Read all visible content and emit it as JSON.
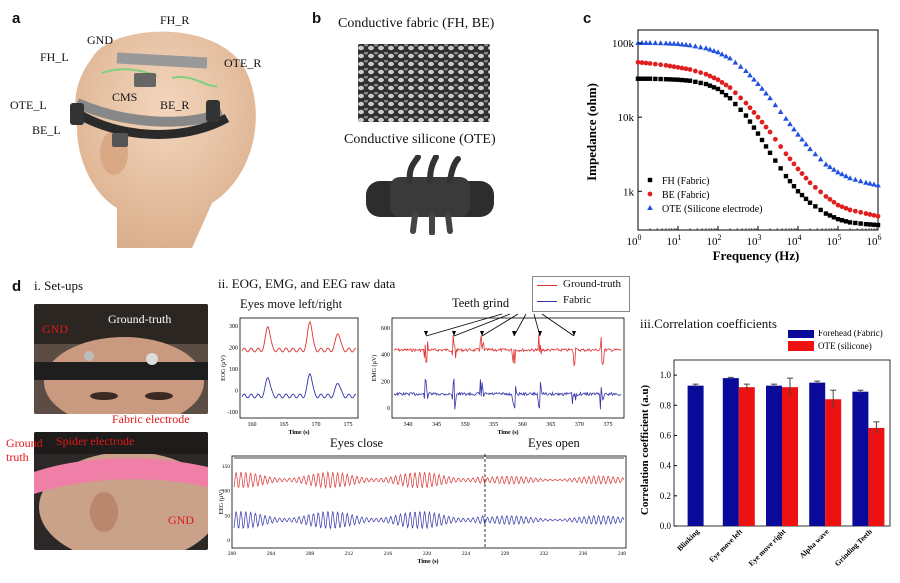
{
  "panel_a": {
    "label": "a",
    "electrodes": [
      "FH_R",
      "GND",
      "FH_L",
      "OTE_R",
      "CMS",
      "OTE_L",
      "BE_R",
      "BE_L"
    ]
  },
  "panel_b": {
    "label": "b",
    "fabric_title": "Conductive fabric (FH, BE)",
    "silicone_title": "Conductive silicone (OTE)"
  },
  "panel_c": {
    "label": "c",
    "chart_data": {
      "type": "scatter",
      "xlabel": "Frequency (Hz)",
      "ylabel": "Impedance (ohm)",
      "x_scale": "log",
      "y_scale": "log",
      "xlim": [
        1,
        1000000
      ],
      "ylim": [
        300,
        150000
      ],
      "x_ticks": [
        "10^0",
        "10^1",
        "10^2",
        "10^3",
        "10^4",
        "10^5",
        "10^6"
      ],
      "y_ticks": [
        "1k",
        "10k",
        "100k"
      ],
      "legend_position": "bottom-left",
      "series": [
        {
          "name": "FH (Fabric)",
          "marker": "square",
          "color": "#000000",
          "x": [
            1,
            2,
            5,
            10,
            20,
            50,
            100,
            200,
            500,
            1000,
            2000,
            5000,
            10000,
            20000,
            50000,
            100000,
            200000,
            500000,
            1000000
          ],
          "y": [
            33000,
            33000,
            32500,
            32000,
            31000,
            28000,
            24000,
            18000,
            10500,
            6000,
            3300,
            1600,
            1000,
            700,
            500,
            420,
            380,
            360,
            350
          ]
        },
        {
          "name": "BE (Fabric)",
          "marker": "circle",
          "color": "#e02020",
          "x": [
            1,
            2,
            5,
            10,
            20,
            50,
            100,
            200,
            500,
            1000,
            2000,
            5000,
            10000,
            20000,
            50000,
            100000,
            200000,
            500000,
            1000000
          ],
          "y": [
            55000,
            53000,
            50000,
            47000,
            44000,
            38000,
            32000,
            25000,
            15500,
            10000,
            6300,
            3200,
            2000,
            1300,
            850,
            650,
            560,
            500,
            460
          ]
        },
        {
          "name": "OTE (Silicone electrode)",
          "marker": "triangle",
          "color": "#2050e0",
          "x": [
            1,
            2,
            5,
            10,
            20,
            50,
            100,
            200,
            500,
            1000,
            2000,
            5000,
            10000,
            20000,
            50000,
            100000,
            200000,
            500000,
            1000000
          ],
          "y": [
            100000,
            100000,
            99000,
            97000,
            93000,
            85000,
            75000,
            62000,
            42000,
            28000,
            18000,
            9500,
            5800,
            3700,
            2300,
            1800,
            1500,
            1300,
            1200
          ]
        }
      ]
    }
  },
  "panel_d": {
    "label": "d",
    "setups_title": "i. Set-ups",
    "photo1_labels": {
      "gnd": "GND",
      "ground_truth": "Ground-truth",
      "fabric_electrode": "Fabric electrode"
    },
    "photo2_labels": {
      "ground_truth": "Ground\ntruth",
      "spider_electrode": "Spider electrode",
      "gnd": "GND"
    },
    "raw_title": "ii. EOG, EMG, and EEG raw data",
    "legend": {
      "ground_truth": "Ground-truth",
      "fabric": "Fabric"
    },
    "eog": {
      "title": "Eyes move left/right",
      "ylabel": "EOG (µV)",
      "xlabel": "Time (s)",
      "y_ticks": [
        "300",
        "200",
        "100",
        "0",
        "-100"
      ],
      "x_ticks": [
        "160",
        "165",
        "170",
        "175"
      ]
    },
    "emg": {
      "title": "Teeth grind",
      "ylabel": "EMG (µV)",
      "xlabel": "Time (s)",
      "y_ticks": [
        "600",
        "400",
        "200",
        "0"
      ],
      "x_ticks": [
        "340",
        "345",
        "350",
        "355",
        "360",
        "365",
        "370",
        "375"
      ]
    },
    "eeg": {
      "eyes_close": "Eyes close",
      "eyes_open": "Eyes open",
      "ylabel": "EEG (µV)",
      "xlabel": "Time (s)",
      "y_ticks": [
        "150",
        "100",
        "50",
        "0"
      ],
      "x_ticks": [
        "200",
        "204",
        "208",
        "212",
        "216",
        "220",
        "224",
        "228",
        "232",
        "236",
        "240"
      ]
    },
    "corr_title": "iii.Correlation coefficients",
    "corr_chart": {
      "type": "bar",
      "ylabel": "Correlation coefficient (a.u)",
      "ylim": [
        0,
        1.1
      ],
      "y_ticks": [
        "0.0",
        "0.2",
        "0.4",
        "0.6",
        "0.8",
        "1.0"
      ],
      "categories": [
        "Blinking",
        "Eye move left",
        "Eye move right",
        "Alpha wave",
        "Grinding Teeth"
      ],
      "series": [
        {
          "name": "Forehead (Fabric)",
          "color": "#0a0a9a",
          "values": [
            0.93,
            0.98,
            0.93,
            0.95,
            0.89
          ],
          "errors": [
            0.01,
            0.005,
            0.01,
            0.01,
            0.01
          ]
        },
        {
          "name": "OTE (silicone)",
          "color": "#ee1111",
          "values": [
            null,
            0.92,
            0.92,
            0.84,
            0.65
          ],
          "errors": [
            null,
            0.02,
            0.06,
            0.06,
            0.04
          ]
        }
      ]
    }
  }
}
